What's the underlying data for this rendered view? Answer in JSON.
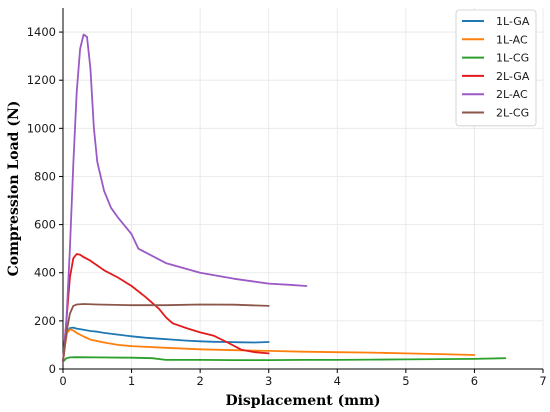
{
  "chart_data": {
    "type": "line",
    "title": "",
    "xlabel": "Displacement (mm)",
    "ylabel": "Compression Load (N)",
    "xlim": [
      0,
      7
    ],
    "ylim": [
      0,
      1500
    ],
    "xticks": [
      0,
      1,
      2,
      3,
      4,
      5,
      6,
      7
    ],
    "yticks": [
      0,
      200,
      400,
      600,
      800,
      1000,
      1200,
      1400
    ],
    "xtick_labels": [
      "0",
      "1",
      "2",
      "3",
      "4",
      "5",
      "6",
      "7"
    ],
    "ytick_labels": [
      "0",
      "200",
      "400",
      "600",
      "800",
      "1000",
      "1200",
      "1400"
    ],
    "grid": true,
    "legend_position": "top-right",
    "series": [
      {
        "name": "1L-GA",
        "color": "#1f77b4",
        "x": [
          0,
          0.03,
          0.06,
          0.1,
          0.15,
          0.2,
          0.3,
          0.4,
          0.5,
          0.6,
          0.8,
          1.0,
          1.2,
          1.4,
          1.6,
          1.8,
          2.0,
          2.2,
          2.4,
          2.6,
          2.8,
          3.0
        ],
        "y": [
          35,
          110,
          155,
          170,
          172,
          168,
          163,
          158,
          155,
          150,
          143,
          136,
          130,
          126,
          122,
          118,
          115,
          113,
          112,
          111,
          110,
          112
        ]
      },
      {
        "name": "1L-AC",
        "color": "#ff7f0e",
        "x": [
          0,
          0.03,
          0.06,
          0.1,
          0.15,
          0.2,
          0.3,
          0.4,
          0.6,
          0.8,
          1.0,
          1.5,
          2.0,
          2.5,
          3.0,
          3.5,
          4.0,
          4.5,
          5.0,
          5.5,
          6.0
        ],
        "y": [
          30,
          100,
          150,
          165,
          160,
          150,
          135,
          122,
          110,
          100,
          95,
          88,
          82,
          78,
          75,
          72,
          70,
          68,
          65,
          62,
          58
        ]
      },
      {
        "name": "1L-CG",
        "color": "#2ca02c",
        "x": [
          0,
          0.05,
          0.1,
          0.2,
          0.5,
          1.0,
          1.3,
          1.5,
          2.0,
          2.5,
          3.0,
          3.5,
          4.0,
          4.5,
          5.0,
          5.5,
          6.0,
          6.45
        ],
        "y": [
          30,
          45,
          48,
          49,
          48,
          47,
          45,
          38,
          38,
          37,
          37,
          38,
          38,
          39,
          40,
          41,
          42,
          45
        ]
      },
      {
        "name": "2L-GA",
        "color": "#e31a1c",
        "x": [
          0,
          0.05,
          0.1,
          0.15,
          0.2,
          0.25,
          0.3,
          0.4,
          0.5,
          0.6,
          0.8,
          1.0,
          1.2,
          1.4,
          1.5,
          1.6,
          1.8,
          2.0,
          2.2,
          2.4,
          2.6,
          2.8,
          3.0
        ],
        "y": [
          30,
          200,
          380,
          460,
          478,
          475,
          465,
          450,
          430,
          410,
          380,
          345,
          300,
          250,
          215,
          190,
          170,
          152,
          138,
          110,
          80,
          70,
          65
        ]
      },
      {
        "name": "2L-AC",
        "color": "#9b59c6",
        "x": [
          0,
          0.05,
          0.1,
          0.15,
          0.2,
          0.25,
          0.3,
          0.35,
          0.4,
          0.45,
          0.5,
          0.6,
          0.7,
          0.8,
          1.0,
          1.1,
          1.5,
          2.0,
          2.5,
          3.0,
          3.3,
          3.55
        ],
        "y": [
          30,
          200,
          500,
          850,
          1150,
          1330,
          1390,
          1380,
          1250,
          1000,
          860,
          740,
          670,
          630,
          560,
          500,
          440,
          400,
          375,
          355,
          350,
          345
        ]
      },
      {
        "name": "2L-CG",
        "color": "#8c564b",
        "x": [
          0,
          0.05,
          0.1,
          0.15,
          0.2,
          0.3,
          0.5,
          1.0,
          1.5,
          2.0,
          2.5,
          3.0
        ],
        "y": [
          30,
          150,
          230,
          262,
          268,
          270,
          268,
          265,
          265,
          268,
          267,
          262
        ]
      }
    ]
  }
}
